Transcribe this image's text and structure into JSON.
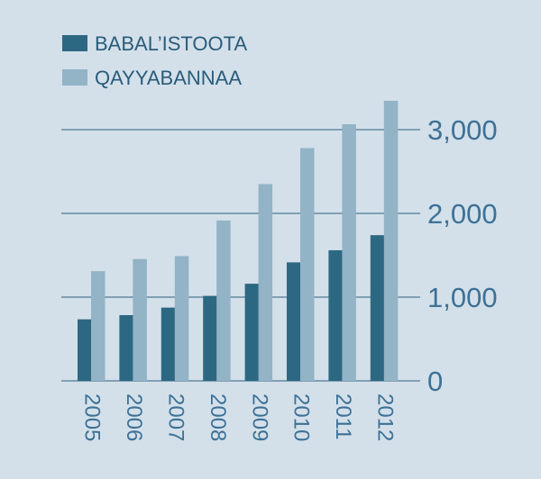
{
  "chart_data": {
    "type": "bar",
    "categories": [
      "2005",
      "2006",
      "2007",
      "2008",
      "2009",
      "2010",
      "2011",
      "2012"
    ],
    "series": [
      {
        "name": "BABAL’ISTOOTA",
        "color": "#2d6882",
        "values": [
          735,
          785,
          875,
          1015,
          1160,
          1415,
          1560,
          1740
        ]
      },
      {
        "name": "QAYYABANNAA",
        "color": "#93b3c6",
        "values": [
          1310,
          1455,
          1490,
          1915,
          2350,
          2780,
          3065,
          3345
        ]
      }
    ],
    "ylim": [
      0,
      3500
    ],
    "yticks": [
      0,
      1000,
      2000,
      3000
    ],
    "ytick_labels": [
      "0",
      "1,000",
      "2,000",
      "3,000"
    ],
    "grid": true,
    "legend_position": "top-left",
    "colors": {
      "background": "#d3e0ea",
      "gridline": "#2f5f7c",
      "axis_text": "#3d7196",
      "legend_text": "#2a5c7a"
    }
  }
}
